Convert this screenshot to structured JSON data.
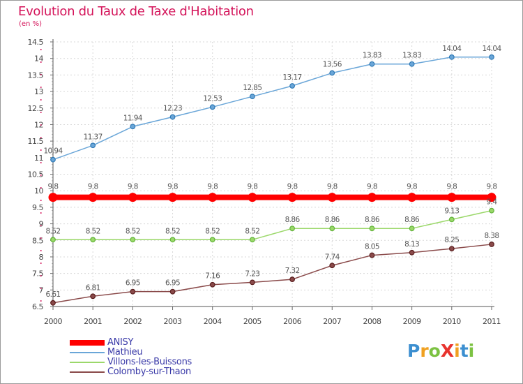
{
  "title": "Evolution du Taux de Taxe d'Habitation",
  "subtitle": "(en %)",
  "logo": {
    "text": "ProXiti",
    "letters": [
      {
        "ch": "P",
        "color": "#3c8fd0"
      },
      {
        "ch": "r",
        "color": "#f0a020"
      },
      {
        "ch": "o",
        "color": "#7cc242"
      },
      {
        "ch": "X",
        "color": "#e8332e"
      },
      {
        "ch": "i",
        "color": "#f0a020"
      },
      {
        "ch": "t",
        "color": "#3c8fd0"
      },
      {
        "ch": "i",
        "color": "#7cc242"
      }
    ]
  },
  "chart_data": {
    "type": "line",
    "title": "Evolution du Taux de Taxe d'Habitation",
    "ylabel": "(en %)",
    "xlabel": "",
    "ylim": [
      6.5,
      14.5
    ],
    "yticks": [
      "6.5",
      "7",
      "7.5",
      "8",
      "8.5",
      "9",
      "9.5",
      "10",
      "10.5",
      "11",
      "11.5",
      "12",
      "12.5",
      "13",
      "13.5",
      "14",
      "14.5"
    ],
    "categories": [
      "2000",
      "2001",
      "2002",
      "2003",
      "2004",
      "2005",
      "2006",
      "2007",
      "2008",
      "2009",
      "2010",
      "2011"
    ],
    "grid": true,
    "legend_position": "bottom-left",
    "series": [
      {
        "name": "Mathieu",
        "color": "#6aa6d8",
        "marker": "#2f79b5",
        "values": [
          10.94,
          11.37,
          11.94,
          12.23,
          12.53,
          12.85,
          13.17,
          13.56,
          13.83,
          13.83,
          14.04,
          14.04
        ],
        "labels": [
          "10.94",
          "11.37",
          "11.94",
          "12.23",
          "12.53",
          "12.85",
          "13.17",
          "13.56",
          "13.83",
          "13.83",
          "14.04",
          "14.04"
        ]
      },
      {
        "name": "ANISY",
        "color": "#ff0000",
        "marker": "#ff0000",
        "bold": true,
        "values": [
          9.8,
          9.8,
          9.8,
          9.8,
          9.8,
          9.8,
          9.8,
          9.8,
          9.8,
          9.8,
          9.8,
          9.8
        ],
        "labels": [
          "9.8",
          "9.8",
          "9.8",
          "9.8",
          "9.8",
          "9.8",
          "9.8",
          "9.8",
          "9.8",
          "9.8",
          "9.8",
          "9.8"
        ]
      },
      {
        "name": "Villons-les-Buissons",
        "color": "#9bd86a",
        "marker": "#62b33a",
        "values": [
          8.52,
          8.52,
          8.52,
          8.52,
          8.52,
          8.52,
          8.86,
          8.86,
          8.86,
          8.86,
          9.13,
          9.4
        ],
        "labels": [
          "8.52",
          "8.52",
          "8.52",
          "8.52",
          "8.52",
          "8.52",
          "8.86",
          "8.86",
          "8.86",
          "8.86",
          "9.13",
          "9.4"
        ]
      },
      {
        "name": "Colomby-sur-Thaon",
        "color": "#8a4a4a",
        "marker": "#5a1e1e",
        "values": [
          6.61,
          6.81,
          6.95,
          6.95,
          7.16,
          7.23,
          7.32,
          7.74,
          8.05,
          8.13,
          8.25,
          8.38
        ],
        "labels": [
          "6.61",
          "6.81",
          "6.95",
          "6.95",
          "7.16",
          "7.23",
          "7.32",
          "7.74",
          "8.05",
          "8.13",
          "8.25",
          "8.38"
        ]
      }
    ],
    "legend": [
      {
        "name": "ANISY",
        "color": "#ff0000",
        "bold": true
      },
      {
        "name": "Mathieu",
        "color": "#6aa6d8"
      },
      {
        "name": "Villons-les-Buissons",
        "color": "#9bd86a"
      },
      {
        "name": "Colomby-sur-Thaon",
        "color": "#8a4a4a"
      }
    ]
  }
}
